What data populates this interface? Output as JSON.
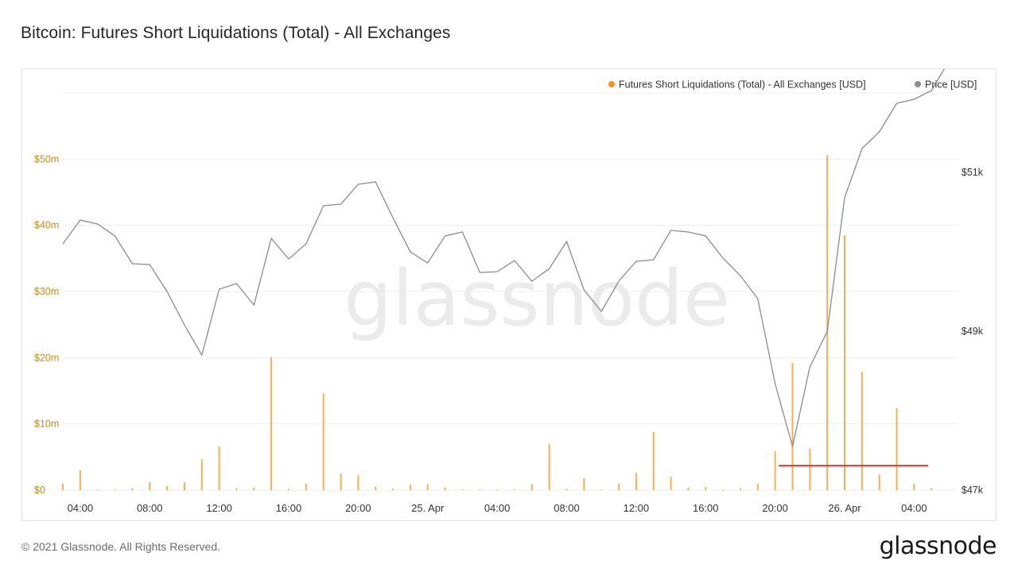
{
  "title": "Bitcoin: Futures Short Liquidations (Total) - All Exchanges",
  "footer": {
    "copyright": "© 2021 Glassnode. All Rights Reserved.",
    "logo": "glassnode"
  },
  "watermark": "glassnode",
  "colors": {
    "liquidations": "#f7931a",
    "price": "#8c8c8c",
    "annotation": "#e8372b",
    "grid": "#eeeeee"
  },
  "chart_data": {
    "type": "bar",
    "title": "Bitcoin: Futures Short Liquidations (Total) - All Exchanges",
    "legend": [
      "Futures Short Liquidations (Total) - All Exchanges [USD]",
      "Price [USD]"
    ],
    "legend_position": "top-right",
    "x_unit": "hours since 24 Apr 03:00",
    "x_range": [
      0,
      51.5
    ],
    "x_ticks": [
      {
        "at": 1,
        "label": "04:00"
      },
      {
        "at": 5,
        "label": "08:00"
      },
      {
        "at": 9,
        "label": "12:00"
      },
      {
        "at": 13,
        "label": "16:00"
      },
      {
        "at": 17,
        "label": "20:00"
      },
      {
        "at": 21,
        "label": "25. Apr"
      },
      {
        "at": 25,
        "label": "04:00"
      },
      {
        "at": 29,
        "label": "08:00"
      },
      {
        "at": 33,
        "label": "12:00"
      },
      {
        "at": 37,
        "label": "16:00"
      },
      {
        "at": 41,
        "label": "20:00"
      },
      {
        "at": 45,
        "label": "26. Apr"
      },
      {
        "at": 49,
        "label": "04:00"
      }
    ],
    "y_left": {
      "label": "",
      "range": [
        0,
        60
      ],
      "ticks": [
        0,
        10,
        20,
        30,
        40,
        50
      ],
      "tick_labels": [
        "$0",
        "$10m",
        "$20m",
        "$30m",
        "$40m",
        "$50m"
      ]
    },
    "y_right": {
      "label": "",
      "range": [
        47,
        52
      ],
      "ticks": [
        47,
        49,
        51
      ],
      "tick_labels": [
        "$47k",
        "$49k",
        "$51k"
      ]
    },
    "series": [
      {
        "name": "Futures Short Liquidations (Total) - All Exchanges [USD]",
        "axis": "left",
        "type": "bar",
        "x": [
          0,
          1,
          2,
          3,
          4,
          5,
          6,
          7,
          8,
          9,
          10,
          11,
          12,
          13,
          14,
          15,
          16,
          17,
          18,
          19,
          20,
          21,
          22,
          23,
          24,
          25,
          26,
          27,
          28,
          29,
          30,
          31,
          32,
          33,
          34,
          35,
          36,
          37,
          38,
          39,
          40,
          41,
          42,
          43,
          44,
          45,
          46,
          47,
          48,
          49,
          50
        ],
        "values": [
          1.0,
          3.0,
          0.1,
          0.1,
          0.3,
          1.2,
          0.6,
          1.2,
          4.7,
          6.6,
          0.3,
          0.4,
          20.1,
          0.2,
          1.0,
          14.6,
          2.5,
          2.3,
          0.5,
          0.2,
          0.8,
          0.9,
          0.4,
          0.1,
          0.1,
          0.1,
          0.1,
          0.9,
          7.0,
          0.2,
          1.8,
          0.1,
          1.0,
          2.6,
          8.8,
          2.0,
          0.4,
          0.5,
          0.1,
          0.3,
          1.0,
          5.9,
          19.2,
          6.3,
          50.6,
          38.5,
          17.9,
          2.4,
          12.4,
          1.0,
          0.3
        ]
      },
      {
        "name": "Price [USD]",
        "axis": "right",
        "type": "line",
        "x": [
          0,
          1,
          2,
          3,
          4,
          5,
          6,
          7,
          8,
          9,
          10,
          11,
          12,
          13,
          14,
          15,
          16,
          17,
          18,
          19,
          20,
          21,
          22,
          23,
          24,
          25,
          26,
          27,
          28,
          29,
          30,
          31,
          32,
          33,
          34,
          35,
          36,
          37,
          38,
          39,
          40,
          41,
          42,
          43,
          44,
          45,
          46,
          47,
          48,
          49,
          50,
          51
        ],
        "values": [
          50.1,
          50.4,
          50.35,
          50.2,
          49.85,
          49.84,
          49.5,
          49.08,
          48.7,
          49.53,
          49.6,
          49.33,
          50.17,
          49.91,
          50.1,
          50.58,
          50.6,
          50.85,
          50.88,
          50.43,
          50.0,
          49.86,
          50.2,
          50.25,
          49.74,
          49.75,
          49.89,
          49.63,
          49.79,
          50.13,
          49.52,
          49.25,
          49.63,
          49.88,
          49.9,
          50.27,
          50.25,
          50.2,
          49.92,
          49.7,
          49.41,
          48.34,
          47.55,
          48.55,
          49.0,
          50.68,
          51.3,
          51.51,
          51.87,
          51.92,
          52.03,
          52.4
        ]
      }
    ],
    "annotations": [
      {
        "type": "horizontal-line",
        "axis": "left",
        "y": 3.7,
        "x_from": 41.2,
        "x_to": 49.8,
        "color": "#e8372b"
      }
    ],
    "grid": true
  }
}
